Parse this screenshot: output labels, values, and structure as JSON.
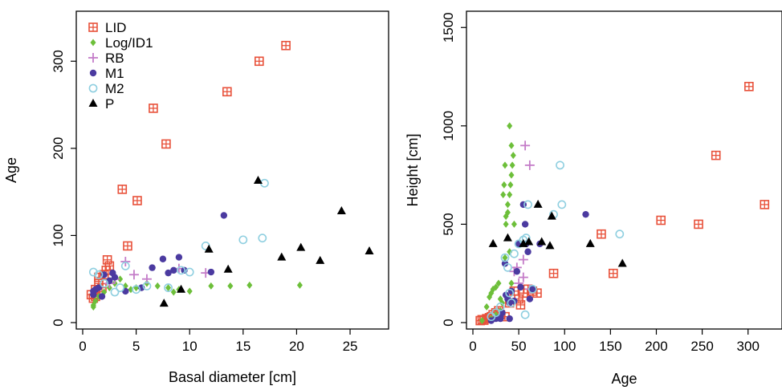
{
  "figure": {
    "legend_entries": [
      {
        "label": "LID",
        "marker": "square-plus",
        "color": "#e8513a"
      },
      {
        "label": "Log/ID1",
        "marker": "diamond",
        "color": "#6dbf3a"
      },
      {
        "label": "RB",
        "marker": "plus",
        "color": "#c47cc8"
      },
      {
        "label": "M1",
        "marker": "filled-circle",
        "color": "#4b3aa0"
      },
      {
        "label": "M2",
        "marker": "open-circle",
        "color": "#8fcfe0"
      },
      {
        "label": "P",
        "marker": "triangle",
        "color": "#000000"
      }
    ]
  },
  "chart_data": [
    {
      "type": "scatter",
      "xlabel": "Basal diameter [cm]",
      "ylabel": "Age",
      "xlim": [
        0,
        28
      ],
      "ylim": [
        0,
        350
      ],
      "xticks": [
        0,
        5,
        10,
        15,
        20,
        25
      ],
      "yticks": [
        0,
        100,
        200,
        300
      ],
      "legend_position": "top-left",
      "series": [
        {
          "name": "LID",
          "marker": "square-plus",
          "color": "#e8513a",
          "points": [
            [
              0.8,
              32
            ],
            [
              1.2,
              38
            ],
            [
              1.5,
              45
            ],
            [
              1.5,
              52
            ],
            [
              2,
              55
            ],
            [
              2.2,
              60
            ],
            [
              2.3,
              72
            ],
            [
              2.5,
              65
            ],
            [
              1.8,
              40
            ],
            [
              1.2,
              30
            ],
            [
              1,
              28
            ],
            [
              3.7,
              153
            ],
            [
              4.2,
              88
            ],
            [
              5.1,
              140
            ],
            [
              6.6,
              246
            ],
            [
              7.8,
              205
            ],
            [
              13.5,
              265
            ],
            [
              16.5,
              300
            ],
            [
              19,
              318
            ]
          ]
        },
        {
          "name": "Log/ID1",
          "marker": "diamond",
          "color": "#6dbf3a",
          "points": [
            [
              1,
              20
            ],
            [
              1,
              18
            ],
            [
              1.2,
              25
            ],
            [
              1.5,
              30
            ],
            [
              2,
              35
            ],
            [
              2.5,
              40
            ],
            [
              3,
              45
            ],
            [
              3.5,
              50
            ],
            [
              4,
              42
            ],
            [
              4.5,
              38
            ],
            [
              5,
              40
            ],
            [
              6,
              45
            ],
            [
              7,
              42
            ],
            [
              8,
              40
            ],
            [
              8.5,
              35
            ],
            [
              9,
              38
            ],
            [
              10,
              36
            ],
            [
              12,
              42
            ],
            [
              13.8,
              42
            ],
            [
              15.6,
              43
            ],
            [
              20.3,
              43
            ]
          ]
        },
        {
          "name": "RB",
          "marker": "plus",
          "color": "#c47cc8",
          "points": [
            [
              2.5,
              45
            ],
            [
              3,
              50
            ],
            [
              4,
              70
            ],
            [
              4.8,
              55
            ],
            [
              6,
              50
            ],
            [
              9,
              62
            ],
            [
              11.5,
              57
            ]
          ]
        },
        {
          "name": "M1",
          "marker": "filled-circle",
          "color": "#4b3aa0",
          "points": [
            [
              1,
              32
            ],
            [
              1.2,
              38
            ],
            [
              1.5,
              40
            ],
            [
              2,
              55
            ],
            [
              2.5,
              48
            ],
            [
              2.8,
              57
            ],
            [
              3,
              52
            ],
            [
              4,
              36
            ],
            [
              5.5,
              40
            ],
            [
              6.5,
              63
            ],
            [
              7.5,
              73
            ],
            [
              8,
              57
            ],
            [
              8.5,
              60
            ],
            [
              9,
              75
            ],
            [
              9.5,
              60
            ],
            [
              12,
              58
            ],
            [
              13.2,
              123
            ],
            [
              1,
              36
            ],
            [
              1.8,
              30
            ]
          ]
        },
        {
          "name": "M2",
          "marker": "open-circle",
          "color": "#8fcfe0",
          "points": [
            [
              1,
              58
            ],
            [
              1.5,
              55
            ],
            [
              2,
              45
            ],
            [
              3,
              35
            ],
            [
              3.5,
              40
            ],
            [
              4,
              65
            ],
            [
              5,
              38
            ],
            [
              6,
              42
            ],
            [
              8,
              40
            ],
            [
              9.2,
              60
            ],
            [
              10,
              58
            ],
            [
              11.5,
              88
            ],
            [
              15,
              95
            ],
            [
              16.8,
              97
            ],
            [
              17,
              160
            ]
          ]
        },
        {
          "name": "P",
          "marker": "triangle",
          "color": "#000000",
          "points": [
            [
              7.6,
              22
            ],
            [
              9.2,
              38
            ],
            [
              11.8,
              84
            ],
            [
              13.6,
              61
            ],
            [
              16.4,
              163
            ],
            [
              18.6,
              75
            ],
            [
              20.4,
              86
            ],
            [
              22.2,
              71
            ],
            [
              24.2,
              128
            ],
            [
              26.8,
              82
            ]
          ]
        }
      ]
    },
    {
      "type": "scatter",
      "xlabel": "Age",
      "ylabel": "Height [cm]",
      "xlim": [
        0,
        330
      ],
      "ylim": [
        0,
        1550
      ],
      "xticks": [
        0,
        50,
        100,
        150,
        200,
        250,
        300
      ],
      "yticks": [
        0,
        500,
        1000,
        1500
      ],
      "series": [
        {
          "name": "LID",
          "marker": "square-plus",
          "color": "#e8513a",
          "points": [
            [
              8,
              10
            ],
            [
              10,
              15
            ],
            [
              12,
              12
            ],
            [
              15,
              20
            ],
            [
              18,
              25
            ],
            [
              20,
              30
            ],
            [
              22,
              40
            ],
            [
              25,
              50
            ],
            [
              28,
              60
            ],
            [
              30,
              40
            ],
            [
              35,
              30
            ],
            [
              40,
              100
            ],
            [
              45,
              160
            ],
            [
              50,
              120
            ],
            [
              52,
              90
            ],
            [
              55,
              150
            ],
            [
              60,
              170
            ],
            [
              65,
              160
            ],
            [
              70,
              150
            ],
            [
              88,
              250
            ],
            [
              140,
              450
            ],
            [
              153,
              250
            ],
            [
              205,
              520
            ],
            [
              246,
              500
            ],
            [
              265,
              850
            ],
            [
              301,
              1200
            ],
            [
              318,
              600
            ]
          ]
        },
        {
          "name": "Log/ID1",
          "marker": "diamond",
          "color": "#6dbf3a",
          "points": [
            [
              10,
              10
            ],
            [
              15,
              80
            ],
            [
              18,
              130
            ],
            [
              20,
              150
            ],
            [
              22,
              170
            ],
            [
              25,
              180
            ],
            [
              28,
              200
            ],
            [
              30,
              120
            ],
            [
              32,
              100
            ],
            [
              33,
              650
            ],
            [
              34,
              700
            ],
            [
              35,
              800
            ],
            [
              36,
              500
            ],
            [
              38,
              600
            ],
            [
              40,
              650
            ],
            [
              41,
              700
            ],
            [
              42,
              750
            ],
            [
              40,
              1000
            ],
            [
              42,
              900
            ],
            [
              44,
              850
            ],
            [
              43,
              800
            ],
            [
              45,
              500
            ],
            [
              38,
              560
            ],
            [
              36,
              540
            ],
            [
              40,
              360
            ],
            [
              35,
              330
            ],
            [
              42,
              200
            ],
            [
              30,
              60
            ],
            [
              25,
              40
            ],
            [
              20,
              20
            ]
          ]
        },
        {
          "name": "RB",
          "marker": "plus",
          "color": "#c47cc8",
          "points": [
            [
              45,
              260
            ],
            [
              48,
              280
            ],
            [
              50,
              200
            ],
            [
              55,
              320
            ],
            [
              57,
              900
            ],
            [
              62,
              800
            ],
            [
              62,
              170
            ],
            [
              55,
              230
            ]
          ]
        },
        {
          "name": "M1",
          "marker": "filled-circle",
          "color": "#4b3aa0",
          "points": [
            [
              20,
              10
            ],
            [
              25,
              20
            ],
            [
              30,
              30
            ],
            [
              32,
              50
            ],
            [
              35,
              300
            ],
            [
              36,
              140
            ],
            [
              38,
              120
            ],
            [
              40,
              100
            ],
            [
              42,
              160
            ],
            [
              45,
              110
            ],
            [
              48,
              260
            ],
            [
              50,
              400
            ],
            [
              52,
              180
            ],
            [
              55,
              600
            ],
            [
              57,
              500
            ],
            [
              58,
              400
            ],
            [
              60,
              360
            ],
            [
              62,
              120
            ],
            [
              65,
              170
            ],
            [
              73,
              400
            ],
            [
              123,
              550
            ],
            [
              30,
              20
            ],
            [
              40,
              20
            ]
          ]
        },
        {
          "name": "M2",
          "marker": "open-circle",
          "color": "#8fcfe0",
          "points": [
            [
              20,
              30
            ],
            [
              25,
              50
            ],
            [
              30,
              80
            ],
            [
              35,
              330
            ],
            [
              38,
              280
            ],
            [
              40,
              150
            ],
            [
              42,
              100
            ],
            [
              45,
              350
            ],
            [
              50,
              400
            ],
            [
              55,
              420
            ],
            [
              58,
              430
            ],
            [
              57,
              40
            ],
            [
              60,
              600
            ],
            [
              65,
              170
            ],
            [
              88,
              550
            ],
            [
              95,
              800
            ],
            [
              97,
              600
            ],
            [
              160,
              450
            ]
          ]
        },
        {
          "name": "P",
          "marker": "triangle",
          "color": "#000000",
          "points": [
            [
              22,
              400
            ],
            [
              38,
              430
            ],
            [
              55,
              400
            ],
            [
              61,
              410
            ],
            [
              71,
              600
            ],
            [
              75,
              410
            ],
            [
              84,
              390
            ],
            [
              86,
              540
            ],
            [
              128,
              400
            ],
            [
              163,
              300
            ]
          ]
        }
      ]
    }
  ]
}
